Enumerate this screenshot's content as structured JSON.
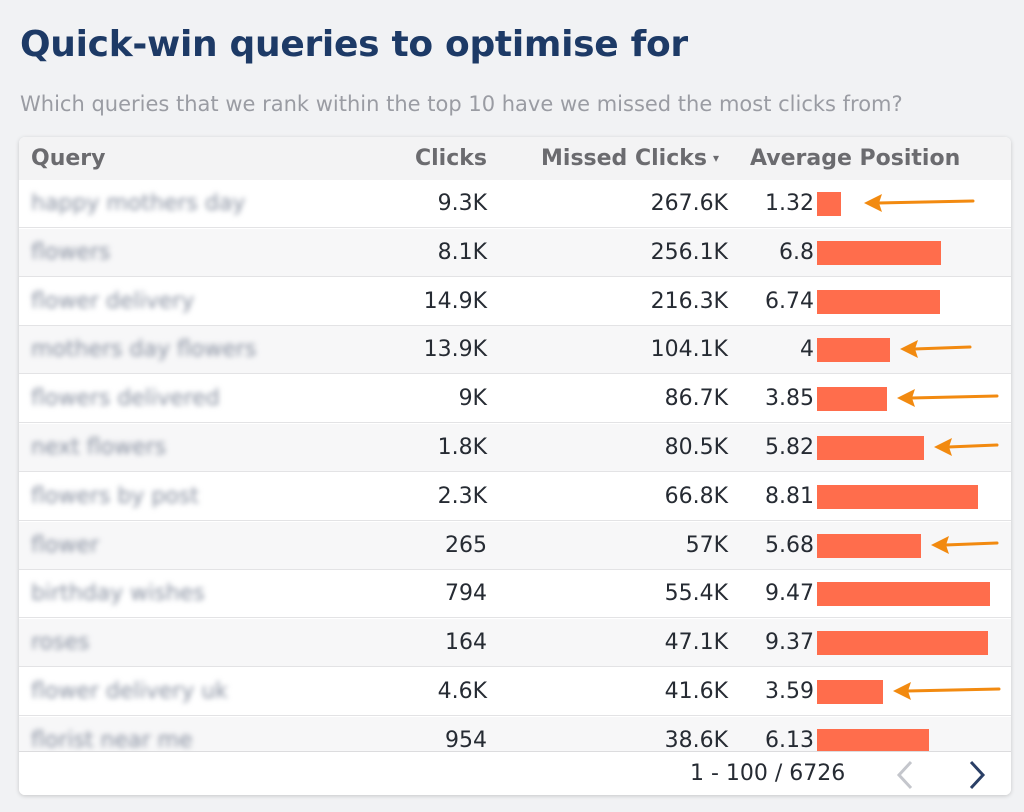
{
  "title": "Quick-win queries to optimise for",
  "subtitle": "Which queries that we rank within the top 10 have we missed the most clicks from?",
  "table": {
    "columns": [
      "Query",
      "Clicks",
      "Missed Clicks",
      "Average Position"
    ],
    "sort_indicator": "▾",
    "rows": [
      {
        "query": "happy mothers day",
        "clicks": "9.3K",
        "missed": "267.6K",
        "avg": "1.32",
        "avg_value": 1.32,
        "arrow": true
      },
      {
        "query": "flowers",
        "clicks": "8.1K",
        "missed": "256.1K",
        "avg": "6.8",
        "avg_value": 6.8,
        "arrow": false
      },
      {
        "query": "flower delivery",
        "clicks": "14.9K",
        "missed": "216.3K",
        "avg": "6.74",
        "avg_value": 6.74,
        "arrow": false
      },
      {
        "query": "mothers day flowers",
        "clicks": "13.9K",
        "missed": "104.1K",
        "avg": "4",
        "avg_value": 4,
        "arrow": true
      },
      {
        "query": "flowers delivered",
        "clicks": "9K",
        "missed": "86.7K",
        "avg": "3.85",
        "avg_value": 3.85,
        "arrow": true
      },
      {
        "query": "next flowers",
        "clicks": "1.8K",
        "missed": "80.5K",
        "avg": "5.82",
        "avg_value": 5.82,
        "arrow": true
      },
      {
        "query": "flowers by post",
        "clicks": "2.3K",
        "missed": "66.8K",
        "avg": "8.81",
        "avg_value": 8.81,
        "arrow": false
      },
      {
        "query": "flower",
        "clicks": "265",
        "missed": "57K",
        "avg": "5.68",
        "avg_value": 5.68,
        "arrow": true
      },
      {
        "query": "birthday wishes",
        "clicks": "794",
        "missed": "55.4K",
        "avg": "9.47",
        "avg_value": 9.47,
        "arrow": false
      },
      {
        "query": "roses",
        "clicks": "164",
        "missed": "47.1K",
        "avg": "9.37",
        "avg_value": 9.37,
        "arrow": false
      },
      {
        "query": "flower delivery uk",
        "clicks": "4.6K",
        "missed": "41.6K",
        "avg": "3.59",
        "avg_value": 3.59,
        "arrow": true
      },
      {
        "query": "florist near me",
        "clicks": "954",
        "missed": "38.6K",
        "avg": "6.13",
        "avg_value": 6.13,
        "arrow": false
      }
    ]
  },
  "pagination": {
    "label": "1 - 100 / 6726",
    "prev_icon": "chevron-left-icon",
    "next_icon": "chevron-right-icon"
  },
  "colors": {
    "title": "#1d3a66",
    "bar": "#ff6d4c",
    "arrow": "#f28a10",
    "row_alt": "#f7f7f8"
  }
}
